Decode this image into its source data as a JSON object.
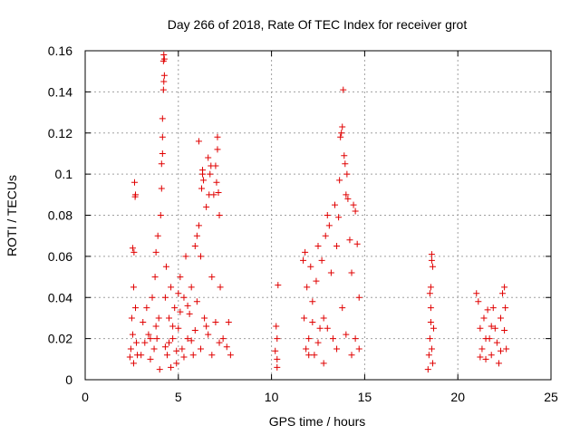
{
  "chart_data": {
    "type": "scatter",
    "title": "Day 266 of 2018, Rate Of TEC Index for receiver grot",
    "xlabel": "GPS time / hours",
    "ylabel": "ROTI / TECUs",
    "xlim": [
      0,
      25
    ],
    "ylim": [
      0,
      0.16
    ],
    "xticks": [
      0,
      5,
      10,
      15,
      20,
      25
    ],
    "xtick_labels": [
      "0",
      "5",
      "10",
      "15",
      "20",
      "25"
    ],
    "yticks": [
      0,
      0.02,
      0.04,
      0.06,
      0.08,
      0.1,
      0.12,
      0.14,
      0.16
    ],
    "ytick_labels": [
      "0",
      "0.02",
      "0.04",
      "0.06",
      "0.08",
      "0.1",
      "0.12",
      "0.14",
      "0.16"
    ],
    "grid": true,
    "marker": "+",
    "color": "#e00000",
    "series": [
      {
        "points": [
          [
            2.4,
            0.011
          ],
          [
            2.45,
            0.015
          ],
          [
            2.5,
            0.03
          ],
          [
            2.55,
            0.022
          ],
          [
            2.6,
            0.045
          ],
          [
            2.62,
            0.062
          ],
          [
            2.55,
            0.064
          ],
          [
            2.65,
            0.096
          ],
          [
            2.7,
            0.09
          ],
          [
            2.68,
            0.089
          ],
          [
            2.7,
            0.035
          ],
          [
            2.75,
            0.018
          ],
          [
            2.6,
            0.008
          ],
          [
            2.8,
            0.012
          ],
          [
            3.0,
            0.012
          ],
          [
            3.1,
            0.028
          ],
          [
            3.2,
            0.018
          ],
          [
            3.3,
            0.035
          ],
          [
            3.4,
            0.022
          ],
          [
            3.5,
            0.01
          ],
          [
            3.6,
            0.04
          ],
          [
            3.7,
            0.015
          ],
          [
            3.75,
            0.05
          ],
          [
            3.8,
            0.062
          ],
          [
            3.85,
            0.02
          ],
          [
            3.9,
            0.07
          ],
          [
            3.95,
            0.03
          ],
          [
            4.0,
            0.005
          ],
          [
            4.05,
            0.08
          ],
          [
            4.1,
            0.093
          ],
          [
            4.15,
            0.11
          ],
          [
            4.1,
            0.105
          ],
          [
            4.15,
            0.118
          ],
          [
            4.15,
            0.127
          ],
          [
            4.2,
            0.141
          ],
          [
            4.22,
            0.145
          ],
          [
            4.25,
            0.148
          ],
          [
            4.2,
            0.155
          ],
          [
            4.22,
            0.158
          ],
          [
            4.25,
            0.156
          ],
          [
            4.3,
            0.04
          ],
          [
            4.35,
            0.055
          ],
          [
            4.4,
            0.012
          ],
          [
            4.5,
            0.03
          ],
          [
            4.6,
            0.045
          ],
          [
            4.7,
            0.02
          ],
          [
            4.8,
            0.035
          ],
          [
            4.9,
            0.008
          ],
          [
            5.0,
            0.025
          ],
          [
            5.1,
            0.05
          ],
          [
            5.2,
            0.015
          ],
          [
            5.3,
            0.04
          ],
          [
            5.4,
            0.06
          ],
          [
            5.5,
            0.02
          ],
          [
            5.6,
            0.032
          ],
          [
            5.7,
            0.045
          ],
          [
            5.8,
            0.012
          ],
          [
            5.9,
            0.065
          ],
          [
            6.0,
            0.07
          ],
          [
            6.1,
            0.075
          ],
          [
            6.2,
            0.06
          ],
          [
            6.25,
            0.093
          ],
          [
            6.3,
            0.1
          ],
          [
            6.35,
            0.097
          ],
          [
            6.1,
            0.116
          ],
          [
            6.3,
            0.102
          ],
          [
            6.5,
            0.084
          ],
          [
            6.6,
            0.108
          ],
          [
            6.65,
            0.09
          ],
          [
            6.7,
            0.1
          ],
          [
            6.75,
            0.104
          ],
          [
            6.8,
            0.05
          ],
          [
            6.9,
            0.09
          ],
          [
            7.0,
            0.104
          ],
          [
            7.05,
            0.096
          ],
          [
            7.1,
            0.112
          ],
          [
            7.1,
            0.118
          ],
          [
            7.15,
            0.091
          ],
          [
            7.2,
            0.08
          ],
          [
            7.25,
            0.045
          ],
          [
            6.2,
            0.015
          ],
          [
            6.4,
            0.03
          ],
          [
            6.6,
            0.022
          ],
          [
            6.8,
            0.012
          ],
          [
            7.0,
            0.028
          ],
          [
            7.2,
            0.018
          ],
          [
            7.4,
            0.02
          ],
          [
            7.6,
            0.016
          ],
          [
            7.7,
            0.028
          ],
          [
            7.8,
            0.012
          ],
          [
            4.5,
            0.018
          ],
          [
            4.7,
            0.026
          ],
          [
            4.9,
            0.014
          ],
          [
            5.1,
            0.033
          ],
          [
            5.3,
            0.011
          ],
          [
            5.5,
            0.036
          ],
          [
            5.7,
            0.019
          ],
          [
            5.9,
            0.024
          ],
          [
            3.5,
            0.02
          ],
          [
            3.8,
            0.026
          ],
          [
            4.3,
            0.016
          ],
          [
            6.0,
            0.038
          ],
          [
            6.5,
            0.026
          ],
          [
            5.0,
            0.042
          ],
          [
            4.6,
            0.006
          ],
          [
            10.2,
            0.014
          ],
          [
            10.25,
            0.026
          ],
          [
            10.3,
            0.02
          ],
          [
            10.3,
            0.01
          ],
          [
            10.35,
            0.046
          ],
          [
            10.3,
            0.006
          ],
          [
            11.7,
            0.058
          ],
          [
            11.8,
            0.062
          ],
          [
            11.9,
            0.045
          ],
          [
            11.75,
            0.03
          ],
          [
            11.85,
            0.015
          ],
          [
            12.0,
            0.02
          ],
          [
            12.1,
            0.055
          ],
          [
            12.2,
            0.038
          ],
          [
            12.3,
            0.012
          ],
          [
            12.4,
            0.048
          ],
          [
            12.5,
            0.065
          ],
          [
            12.6,
            0.025
          ],
          [
            12.7,
            0.058
          ],
          [
            12.8,
            0.03
          ],
          [
            12.9,
            0.07
          ],
          [
            13.0,
            0.08
          ],
          [
            13.1,
            0.075
          ],
          [
            13.2,
            0.052
          ],
          [
            13.3,
            0.02
          ],
          [
            13.4,
            0.085
          ],
          [
            13.5,
            0.065
          ],
          [
            13.6,
            0.079
          ],
          [
            13.65,
            0.097
          ],
          [
            13.7,
            0.118
          ],
          [
            13.75,
            0.12
          ],
          [
            13.8,
            0.123
          ],
          [
            13.85,
            0.141
          ],
          [
            13.9,
            0.109
          ],
          [
            13.95,
            0.105
          ],
          [
            14.0,
            0.09
          ],
          [
            14.05,
            0.1
          ],
          [
            14.1,
            0.088
          ],
          [
            14.2,
            0.068
          ],
          [
            14.3,
            0.052
          ],
          [
            14.4,
            0.085
          ],
          [
            14.5,
            0.082
          ],
          [
            14.6,
            0.066
          ],
          [
            14.7,
            0.04
          ],
          [
            14.5,
            0.02
          ],
          [
            14.3,
            0.012
          ],
          [
            14.7,
            0.015
          ],
          [
            12.0,
            0.012
          ],
          [
            12.5,
            0.018
          ],
          [
            13.0,
            0.025
          ],
          [
            13.5,
            0.015
          ],
          [
            14.0,
            0.022
          ],
          [
            12.8,
            0.008
          ],
          [
            13.8,
            0.035
          ],
          [
            12.2,
            0.028
          ],
          [
            18.4,
            0.005
          ],
          [
            18.45,
            0.012
          ],
          [
            18.5,
            0.02
          ],
          [
            18.55,
            0.028
          ],
          [
            18.5,
            0.042
          ],
          [
            18.55,
            0.045
          ],
          [
            18.6,
            0.058
          ],
          [
            18.6,
            0.061
          ],
          [
            18.65,
            0.055
          ],
          [
            18.7,
            0.025
          ],
          [
            18.6,
            0.015
          ],
          [
            18.55,
            0.035
          ],
          [
            18.65,
            0.008
          ],
          [
            21.0,
            0.042
          ],
          [
            21.1,
            0.038
          ],
          [
            21.2,
            0.025
          ],
          [
            21.3,
            0.015
          ],
          [
            21.4,
            0.03
          ],
          [
            21.5,
            0.01
          ],
          [
            21.6,
            0.034
          ],
          [
            21.7,
            0.02
          ],
          [
            21.8,
            0.012
          ],
          [
            21.9,
            0.035
          ],
          [
            22.0,
            0.025
          ],
          [
            22.1,
            0.018
          ],
          [
            22.2,
            0.008
          ],
          [
            22.3,
            0.03
          ],
          [
            22.4,
            0.042
          ],
          [
            22.5,
            0.045
          ],
          [
            22.55,
            0.035
          ],
          [
            22.6,
            0.015
          ],
          [
            21.5,
            0.02
          ],
          [
            22.3,
            0.014
          ],
          [
            21.2,
            0.011
          ],
          [
            22.5,
            0.024
          ],
          [
            21.8,
            0.026
          ]
        ]
      }
    ]
  }
}
